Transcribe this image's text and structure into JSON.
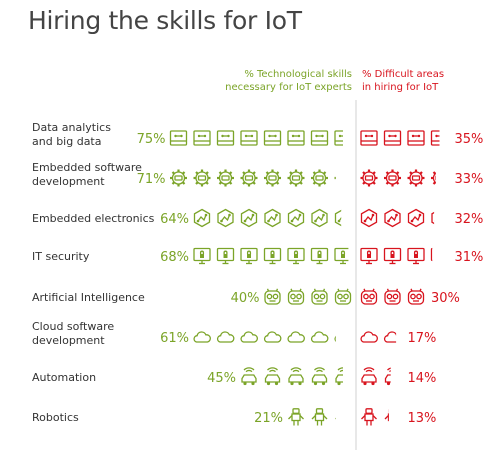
{
  "title": "Hiring the skills for IoT",
  "colors": {
    "green": "#7ba428",
    "red": "#d8141e",
    "text": "#333333",
    "title": "#444444",
    "divider": "#d0d0d0"
  },
  "chart_data": {
    "type": "pictograph",
    "title": "Hiring the skills for IoT",
    "series": [
      {
        "name": "% Technological skills necessary for IoT experts",
        "name_lines": [
          "% Technological skills",
          "necessary for IoT experts"
        ]
      },
      {
        "name": "% Difficult areas in hiring for IoT",
        "name_lines": [
          "% Difficult areas",
          "in hiring for IoT"
        ]
      }
    ],
    "unit_per_icon": 10,
    "categories": [
      {
        "label_lines": [
          "Data analytics",
          "and big data"
        ],
        "necessary": 75,
        "difficult": 35,
        "icon": "chip-icon"
      },
      {
        "label_lines": [
          "Embedded software",
          "development"
        ],
        "necessary": 71,
        "difficult": 33,
        "icon": "gear-icon"
      },
      {
        "label_lines": [
          "Embedded electronics"
        ],
        "necessary": 64,
        "difficult": 32,
        "icon": "circuit-hexagon-icon"
      },
      {
        "label_lines": [
          "IT security"
        ],
        "necessary": 68,
        "difficult": 31,
        "icon": "lock-monitor-icon"
      },
      {
        "label_lines": [
          "Artificial Intelligence"
        ],
        "necessary": 40,
        "difficult": 30,
        "icon": "robot-face-icon"
      },
      {
        "label_lines": [
          "Cloud software",
          "development"
        ],
        "necessary": 61,
        "difficult": 17,
        "icon": "cloud-icon"
      },
      {
        "label_lines": [
          "Automation"
        ],
        "necessary": 45,
        "difficult": 14,
        "icon": "self-driving-car-icon"
      },
      {
        "label_lines": [
          "Robotics"
        ],
        "necessary": 21,
        "difficult": 13,
        "icon": "robot-icon"
      }
    ]
  }
}
